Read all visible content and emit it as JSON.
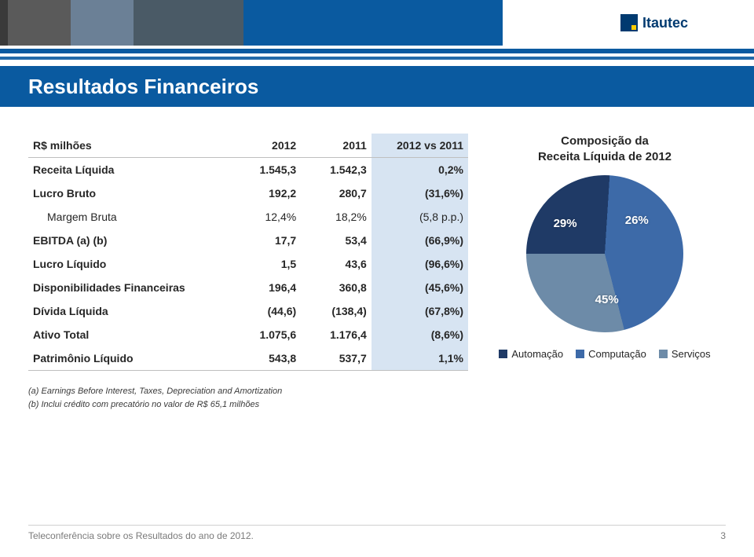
{
  "brand": {
    "name": "Itautec"
  },
  "page": {
    "title": "Resultados Financeiros",
    "footer": "Teleconferência sobre os Resultados do ano de 2012.",
    "page_number": "3"
  },
  "table": {
    "headers": {
      "label": "R$ milhões",
      "y2012": "2012",
      "y2011": "2011",
      "vs": "2012 vs 2011"
    },
    "rows": [
      {
        "label": "Receita Líquida",
        "bold": true,
        "indent": false,
        "y2012": "1.545,3",
        "y2011": "1.542,3",
        "vs": "0,2%"
      },
      {
        "label": "Lucro Bruto",
        "bold": true,
        "indent": false,
        "y2012": "192,2",
        "y2011": "280,7",
        "vs": "(31,6%)"
      },
      {
        "label": "Margem Bruta",
        "bold": false,
        "indent": true,
        "y2012": "12,4%",
        "y2011": "18,2%",
        "vs": "(5,8 p.p.)"
      },
      {
        "label": "EBITDA (a) (b)",
        "bold": true,
        "indent": false,
        "y2012": "17,7",
        "y2011": "53,4",
        "vs": "(66,9%)"
      },
      {
        "label": "Lucro Líquido",
        "bold": true,
        "indent": false,
        "y2012": "1,5",
        "y2011": "43,6",
        "vs": "(96,6%)"
      },
      {
        "label": "Disponibilidades Financeiras",
        "bold": true,
        "indent": false,
        "y2012": "196,4",
        "y2011": "360,8",
        "vs": "(45,6%)"
      },
      {
        "label": "Dívida Líquida",
        "bold": true,
        "indent": false,
        "y2012": "(44,6)",
        "y2011": "(138,4)",
        "vs": "(67,8%)"
      },
      {
        "label": "Ativo Total",
        "bold": true,
        "indent": false,
        "y2012": "1.075,6",
        "y2011": "1.176,4",
        "vs": "(8,6%)"
      },
      {
        "label": "Patrimônio Líquido",
        "bold": true,
        "indent": false,
        "y2012": "543,8",
        "y2011": "537,7",
        "vs": "1,1%"
      }
    ],
    "col_widths": [
      "46%",
      "16%",
      "16%",
      "22%"
    ],
    "vs_bg": "#d7e4f2"
  },
  "footnotes": {
    "a": "(a) Earnings Before Interest, Taxes, Depreciation and Amortization",
    "b": "(b) Inclui crédito com precatório no valor de R$ 65,1 milhões"
  },
  "chart": {
    "type": "pie",
    "title_l1": "Composição da",
    "title_l2": "Receita Líquida de 2012",
    "background_color": "#ffffff",
    "slices": [
      {
        "name": "Automação",
        "value": 26,
        "label": "26%",
        "color": "#1f3a66"
      },
      {
        "name": "Computação",
        "value": 45,
        "label": "45%",
        "color": "#3d6aa8"
      },
      {
        "name": "Serviços",
        "value": 29,
        "label": "29%",
        "color": "#6d8ba8"
      }
    ],
    "start_angle_deg": -90,
    "label_fontsize": 15,
    "label_color": "#ffffff",
    "legend": [
      {
        "swatch": "#1f3a66",
        "text": "Automação"
      },
      {
        "swatch": "#3d6aa8",
        "text": "Computação"
      },
      {
        "swatch": "#6d8ba8",
        "text": "Serviços"
      }
    ]
  },
  "colors": {
    "brand_blue": "#0a5aa0",
    "text": "#262626",
    "muted": "#7a7a7a"
  }
}
